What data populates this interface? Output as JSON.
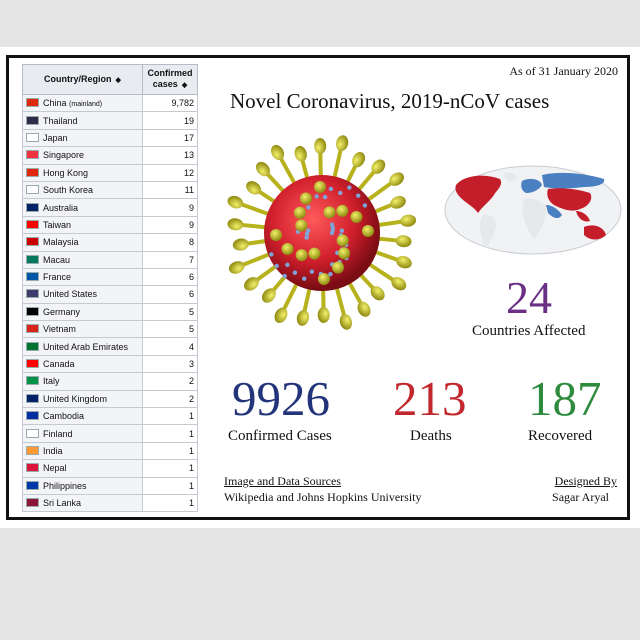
{
  "date_label": "As of 31 January 2020",
  "title": "Novel Coronavirus, 2019-nCoV cases",
  "table": {
    "col_country": "Country/Region",
    "col_cases": "Confirmed cases",
    "rows": [
      {
        "country": "China",
        "note": "(mainland)",
        "cases": "9,782",
        "flag": "#de2910"
      },
      {
        "country": "Thailand",
        "note": "",
        "cases": "19",
        "flag": "#2d2a4a"
      },
      {
        "country": "Japan",
        "note": "",
        "cases": "17",
        "flag": "#ffffff"
      },
      {
        "country": "Singapore",
        "note": "",
        "cases": "13",
        "flag": "#ef3340"
      },
      {
        "country": "Hong Kong",
        "note": "",
        "cases": "12",
        "flag": "#de2910"
      },
      {
        "country": "South Korea",
        "note": "",
        "cases": "11",
        "flag": "#ffffff"
      },
      {
        "country": "Australia",
        "note": "",
        "cases": "9",
        "flag": "#012169"
      },
      {
        "country": "Taiwan",
        "note": "",
        "cases": "9",
        "flag": "#fe0000"
      },
      {
        "country": "Malaysia",
        "note": "",
        "cases": "8",
        "flag": "#cc0001"
      },
      {
        "country": "Macau",
        "note": "",
        "cases": "7",
        "flag": "#00785e"
      },
      {
        "country": "France",
        "note": "",
        "cases": "6",
        "flag": "#0055a4"
      },
      {
        "country": "United States",
        "note": "",
        "cases": "6",
        "flag": "#3c3b6e"
      },
      {
        "country": "Germany",
        "note": "",
        "cases": "5",
        "flag": "#000000"
      },
      {
        "country": "Vietnam",
        "note": "",
        "cases": "5",
        "flag": "#da251d"
      },
      {
        "country": "United Arab Emirates",
        "note": "",
        "cases": "4",
        "flag": "#00732f"
      },
      {
        "country": "Canada",
        "note": "",
        "cases": "3",
        "flag": "#ff0000"
      },
      {
        "country": "Italy",
        "note": "",
        "cases": "2",
        "flag": "#009246"
      },
      {
        "country": "United Kingdom",
        "note": "",
        "cases": "2",
        "flag": "#012169"
      },
      {
        "country": "Cambodia",
        "note": "",
        "cases": "1",
        "flag": "#032ea1"
      },
      {
        "country": "Finland",
        "note": "",
        "cases": "1",
        "flag": "#ffffff"
      },
      {
        "country": "India",
        "note": "",
        "cases": "1",
        "flag": "#ff9933"
      },
      {
        "country": "Nepal",
        "note": "",
        "cases": "1",
        "flag": "#dc143c"
      },
      {
        "country": "Philippines",
        "note": "",
        "cases": "1",
        "flag": "#0038a8"
      },
      {
        "country": "Sri Lanka",
        "note": "",
        "cases": "1",
        "flag": "#8d153a"
      }
    ]
  },
  "countries_affected": {
    "value": "24",
    "label": "Countries Affected",
    "color": "#6b2f85"
  },
  "stats": [
    {
      "value": "9926",
      "label": "Confirmed Cases",
      "color": "#23357a"
    },
    {
      "value": "213",
      "label": "Deaths",
      "color": "#c1272d"
    },
    {
      "value": "187",
      "label": "Recovered",
      "color": "#2e8b3d"
    }
  ],
  "sources": {
    "heading": "Image and Data Sources",
    "text": "Wikipedia and Johns Hopkins University"
  },
  "designer": {
    "heading": "Designed By",
    "name": "Sagar Aryal"
  },
  "icons": {
    "sort": "sort-arrows-icon",
    "virus": "coronavirus-illustration",
    "map": "world-map"
  }
}
